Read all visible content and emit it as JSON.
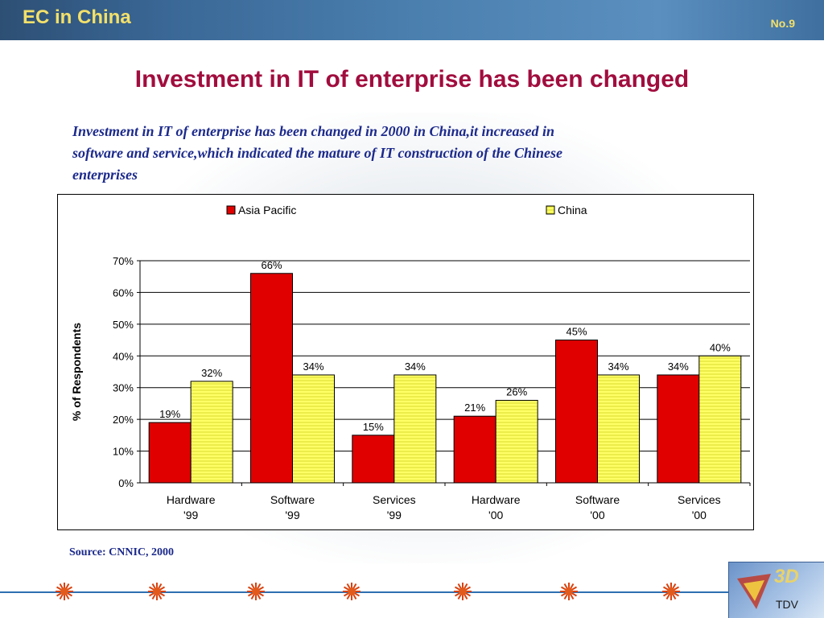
{
  "header": {
    "title": "EC in China",
    "page_number": "No.9"
  },
  "slide": {
    "title": "Investment in IT of enterprise has been changed",
    "intro_lines": [
      "Investment in IT of enterprise has been changed in 2000 in China,it  increased in",
      "software and service,which indicated  the mature of IT construction of the Chinese",
      "enterprises"
    ],
    "source": "Source: CNNIC, 2000"
  },
  "footer": {
    "logo_text": "3D",
    "logo_subtext": "TDV"
  },
  "colors": {
    "title": "#a10d3e",
    "header_text": "#f3e06a",
    "intro_text": "#1c2a8c",
    "asia_pacific": "#e00000",
    "china": "#ffff66"
  },
  "chart_data": {
    "type": "bar",
    "categories": [
      [
        "Hardware",
        "'99"
      ],
      [
        "Software",
        "'99"
      ],
      [
        "Services",
        "'99"
      ],
      [
        "Hardware",
        "'00"
      ],
      [
        "Software",
        "'00"
      ],
      [
        "Services",
        "'00"
      ]
    ],
    "series": [
      {
        "name": "Asia Pacific",
        "values": [
          19,
          66,
          15,
          21,
          45,
          34
        ],
        "labels": [
          "19%",
          "66%",
          "15%",
          "21%",
          "45%",
          "34%"
        ]
      },
      {
        "name": "China",
        "values": [
          32,
          34,
          34,
          26,
          34,
          40
        ],
        "labels": [
          "32%",
          "34%",
          "34%",
          "26%",
          "34%",
          "40%"
        ]
      }
    ],
    "ylabel": "% of Respondents",
    "ylim": [
      0,
      70
    ],
    "yticks": [
      0,
      10,
      20,
      30,
      40,
      50,
      60,
      70
    ],
    "ytick_labels": [
      "0%",
      "10%",
      "20%",
      "30%",
      "40%",
      "50%",
      "60%",
      "70%"
    ],
    "grid": true,
    "legend": "top"
  }
}
